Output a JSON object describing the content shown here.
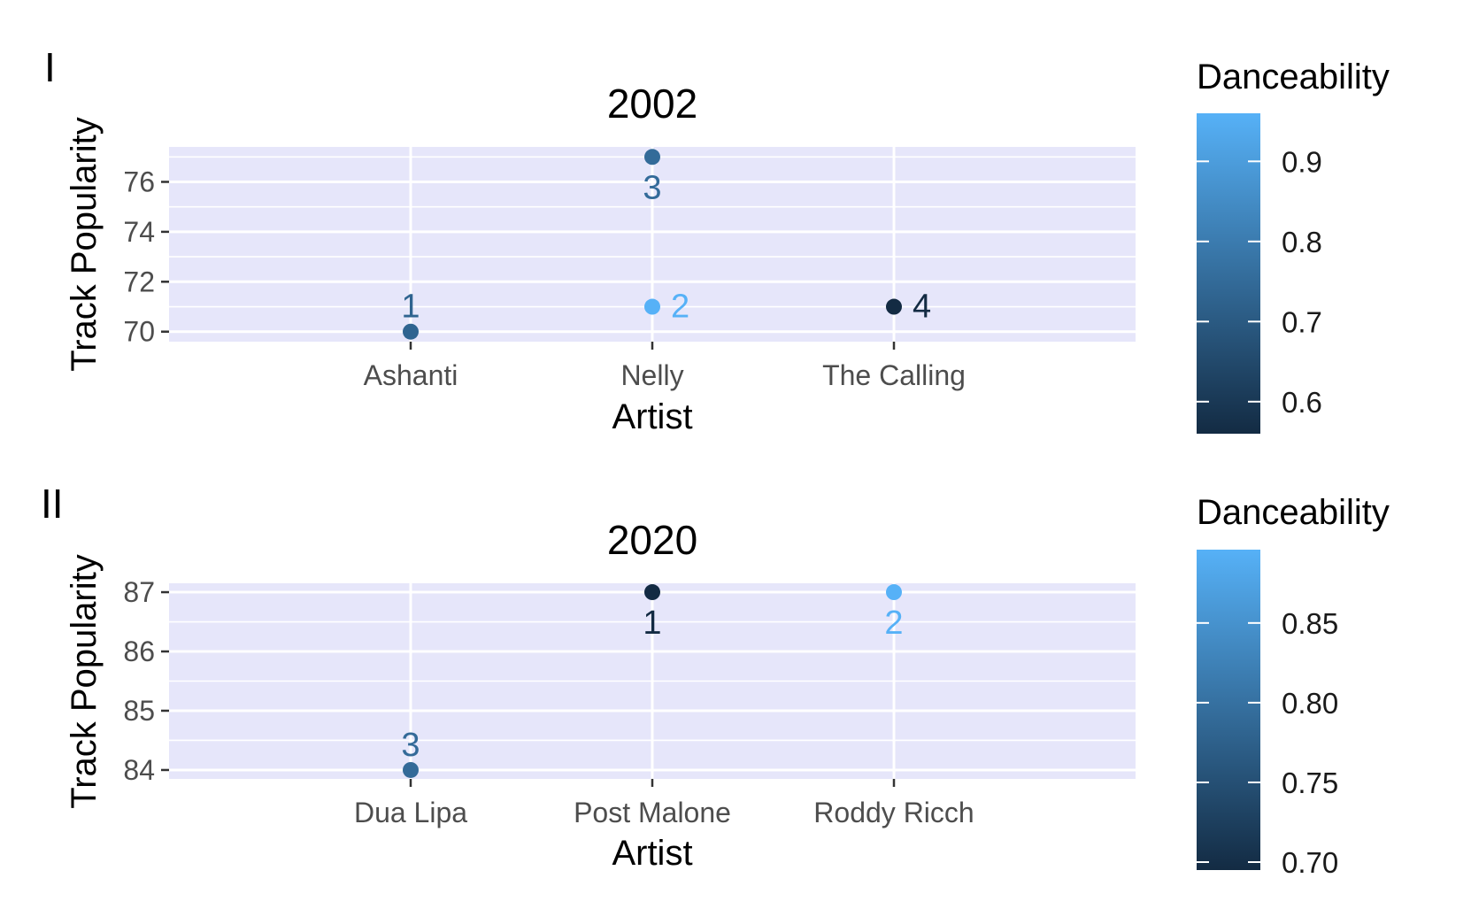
{
  "colors": {
    "panel_bg": "#E6E6FA",
    "grid": "#FFFFFF",
    "axis_tick": "#333333",
    "low": "#132B43",
    "high": "#56B1F7"
  },
  "chart_data": [
    {
      "type": "scatter",
      "tag": "I",
      "title": "2002",
      "xlabel": "Artist",
      "ylabel": "Track Popularity",
      "categories": [
        "Ashanti",
        "Nelly",
        "The Calling"
      ],
      "ylim": [
        69.6,
        77.4
      ],
      "y_ticks": [
        70,
        72,
        74,
        76
      ],
      "y_tick_labels": [
        "70",
        "72",
        "74",
        "76"
      ],
      "points": [
        {
          "artist": "Ashanti",
          "popularity": 70,
          "danceability": 0.73,
          "rank": "1",
          "label_pos": "above"
        },
        {
          "artist": "Nelly",
          "popularity": 77,
          "danceability": 0.75,
          "rank": "3",
          "label_pos": "below"
        },
        {
          "artist": "Nelly",
          "popularity": 71,
          "danceability": 0.96,
          "rank": "2",
          "label_pos": "right"
        },
        {
          "artist": "The Calling",
          "popularity": 71,
          "danceability": 0.56,
          "rank": "4",
          "label_pos": "right"
        }
      ],
      "legend": {
        "title": "Danceability",
        "min": 0.56,
        "max": 0.96,
        "ticks": [
          0.6,
          0.7,
          0.8,
          0.9
        ],
        "tick_labels": [
          "0.6",
          "0.7",
          "0.8",
          "0.9"
        ]
      }
    },
    {
      "type": "scatter",
      "tag": "II",
      "title": "2020",
      "xlabel": "Artist",
      "ylabel": "Track Popularity",
      "categories": [
        "Dua Lipa",
        "Post Malone",
        "Roddy Ricch"
      ],
      "ylim": [
        83.85,
        87.15
      ],
      "y_ticks": [
        84,
        85,
        86,
        87
      ],
      "y_tick_labels": [
        "84",
        "85",
        "86",
        "87"
      ],
      "points": [
        {
          "artist": "Dua Lipa",
          "popularity": 84,
          "danceability": 0.79,
          "rank": "3",
          "label_pos": "above"
        },
        {
          "artist": "Post Malone",
          "popularity": 87,
          "danceability": 0.695,
          "rank": "1",
          "label_pos": "below"
        },
        {
          "artist": "Roddy Ricch",
          "popularity": 87,
          "danceability": 0.896,
          "rank": "2",
          "label_pos": "below"
        }
      ],
      "legend": {
        "title": "Danceability",
        "min": 0.695,
        "max": 0.896,
        "ticks": [
          0.7,
          0.75,
          0.8,
          0.85
        ],
        "tick_labels": [
          "0.70",
          "0.75",
          "0.80",
          "0.85"
        ]
      }
    }
  ]
}
